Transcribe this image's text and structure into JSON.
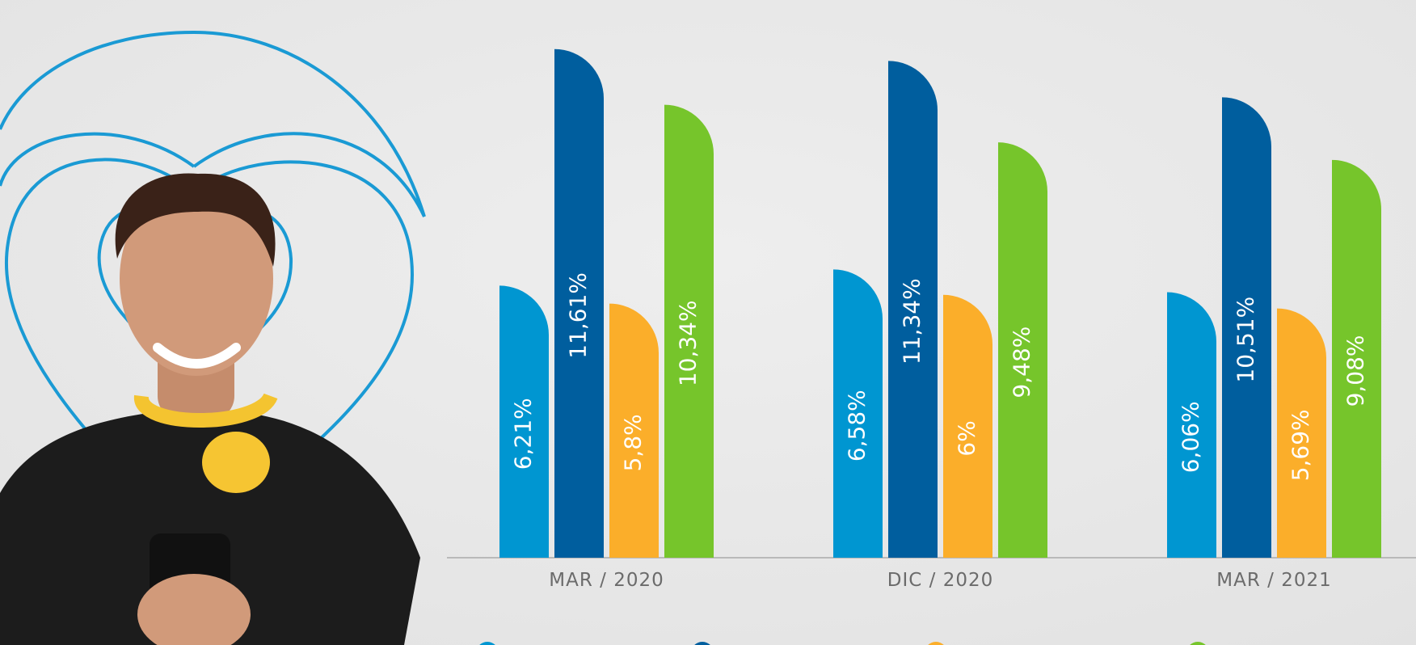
{
  "chart_data": {
    "type": "bar",
    "categories": [
      "MAR / 2020",
      "DIC / 2020",
      "MAR / 2021"
    ],
    "series": [
      {
        "color": "#0096d1",
        "values": [
          6.21,
          6.58,
          6.06
        ],
        "value_labels": [
          "6,21%",
          "6,58%",
          "6,06%"
        ]
      },
      {
        "color": "#005e9e",
        "values": [
          11.61,
          11.34,
          10.51
        ],
        "value_labels": [
          "11,61%",
          "11,34%",
          "10,51%"
        ]
      },
      {
        "color": "#fbae2a",
        "values": [
          5.8,
          6,
          5.69
        ],
        "value_labels": [
          "5,8%",
          "6%",
          "5,69%"
        ]
      },
      {
        "color": "#76c52b",
        "values": [
          10.34,
          9.48,
          9.08
        ],
        "value_labels": [
          "10,34%",
          "9,48%",
          "9,08%"
        ]
      }
    ]
  }
}
